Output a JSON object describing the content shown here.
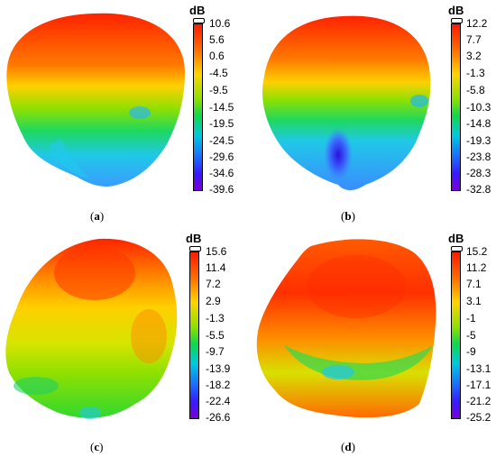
{
  "panels": [
    {
      "id": "a",
      "caption_letter": "a",
      "unit": "dB",
      "ticks": [
        "10.6",
        "5.6",
        "0.6",
        "-4.5",
        "-9.5",
        "-14.5",
        "-19.5",
        "-24.5",
        "-29.6",
        "-34.6",
        "-39.6"
      ]
    },
    {
      "id": "b",
      "caption_letter": "b",
      "unit": "dB",
      "ticks": [
        "12.2",
        "7.7",
        "3.2",
        "-1.3",
        "-5.8",
        "-10.3",
        "-14.8",
        "-19.3",
        "-23.8",
        "-28.3",
        "-32.8"
      ]
    },
    {
      "id": "c",
      "caption_letter": "c",
      "unit": "dB",
      "ticks": [
        "15.6",
        "11.4",
        "7.2",
        "2.9",
        "-1.3",
        "-5.5",
        "-9.7",
        "-13.9",
        "-18.2",
        "-22.4",
        "-26.6"
      ]
    },
    {
      "id": "d",
      "caption_letter": "d",
      "unit": "dB",
      "ticks": [
        "15.2",
        "11.2",
        "7.1",
        "3.1",
        "-1",
        "-5",
        "-9",
        "-13.1",
        "-17.1",
        "-21.2",
        "-25.2"
      ]
    }
  ],
  "colorscale": [
    "#ff1a00",
    "#ff6a00",
    "#ffd400",
    "#8ee000",
    "#10d84a",
    "#00c8e0",
    "#1a6cff",
    "#3a1aff",
    "#7a00d8"
  ]
}
